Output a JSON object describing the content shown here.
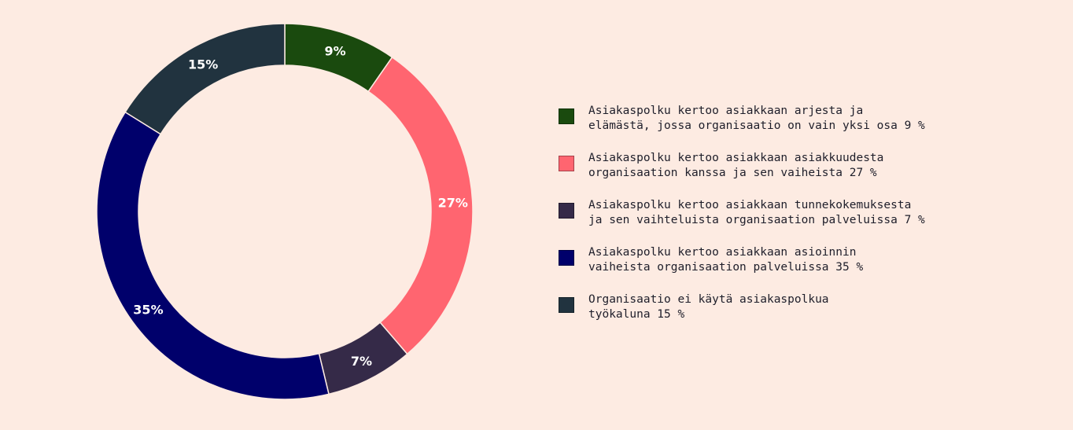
{
  "chart_data": {
    "type": "pie",
    "donut": true,
    "start_angle_deg": 0,
    "direction": "clockwise",
    "slices": [
      {
        "value": 9,
        "label": "9%",
        "color": "#1A4A0E",
        "legend": [
          "Asiakaspolku kertoo asiakkaan arjesta ja",
          "elämästä, jossa organisaatio on vain yksi osa 9 %"
        ]
      },
      {
        "value": 27,
        "label": "27%",
        "color": "#FF6570",
        "legend": [
          "Asiakaspolku kertoo asiakkaan asiakkuudesta",
          "organisaation kanssa ja sen vaiheista 27 %"
        ]
      },
      {
        "value": 7,
        "label": "7%",
        "color": "#352A48",
        "legend": [
          "Asiakaspolku kertoo asiakkaan tunnekokemuksesta",
          "ja sen vaihteluista organisaation palveluissa 7 %"
        ]
      },
      {
        "value": 35,
        "label": "35%",
        "color": "#00006B",
        "legend": [
          "Asiakaspolku kertoo asiakkaan asioinnin",
          "vaiheista organisaation palveluissa 35 %"
        ]
      },
      {
        "value": 15,
        "label": "15%",
        "color": "#21333F",
        "legend": [
          "Organisaatio ei käytä asiakaspolkua",
          "työkaluna 15 %"
        ]
      }
    ],
    "legend_position": "right"
  }
}
